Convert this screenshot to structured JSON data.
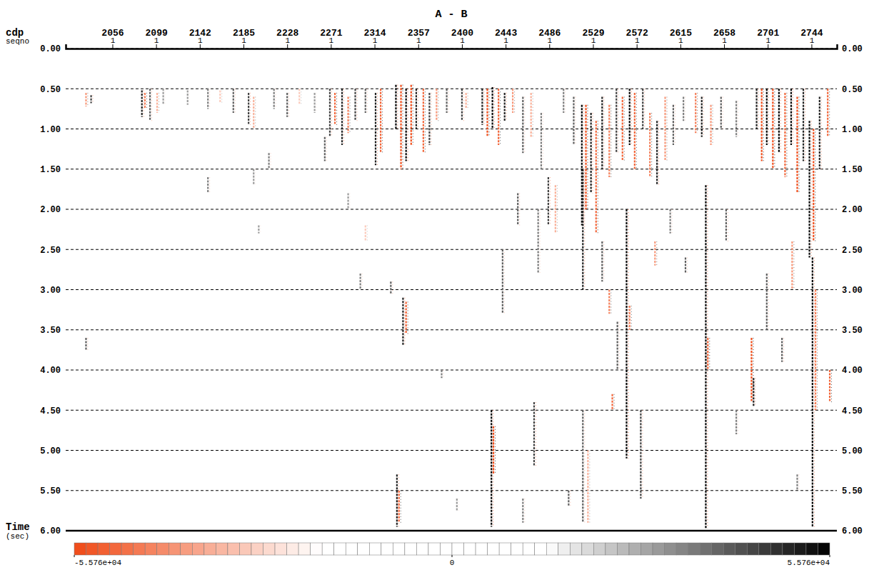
{
  "chart_data": {
    "type": "seismic",
    "title": "A - B",
    "xlabel": "cdp",
    "xlabel_sub": "seqno",
    "ylabel": "Time",
    "ylabel_sub": "(sec)",
    "xlim": [
      2010,
      2769
    ],
    "xticks": [
      2056,
      2099,
      2142,
      2185,
      2228,
      2271,
      2314,
      2357,
      2400,
      2443,
      2486,
      2529,
      2572,
      2615,
      2658,
      2701,
      2744
    ],
    "seqno": [
      1,
      1,
      1,
      1,
      1,
      1,
      1,
      1,
      1,
      1,
      1,
      1,
      1,
      1,
      1,
      1,
      1
    ],
    "ylim": [
      0,
      6
    ],
    "yticks": [
      {
        "value": 0,
        "label": "0.00"
      },
      {
        "value": 0.5,
        "label": "0.50"
      },
      {
        "value": 1,
        "label": "1.00"
      },
      {
        "value": 1.5,
        "label": "1.50"
      },
      {
        "value": 2,
        "label": "2.00"
      },
      {
        "value": 2.5,
        "label": "2.50"
      },
      {
        "value": 3,
        "label": "3.00"
      },
      {
        "value": 3.5,
        "label": "3.50"
      },
      {
        "value": 4,
        "label": "4.00"
      },
      {
        "value": 4.5,
        "label": "4.50"
      },
      {
        "value": 5,
        "label": "5.00"
      },
      {
        "value": 5.5,
        "label": "5.50"
      },
      {
        "value": 6,
        "label": "6.00"
      }
    ],
    "grid": true,
    "colorbar": {
      "range": [
        -55760,
        55760
      ],
      "ticks": [
        {
          "value": -55760,
          "label": "-5.576e+04"
        },
        {
          "value": 0,
          "label": "0"
        },
        {
          "value": 55760,
          "label": "5.576e+04"
        }
      ]
    },
    "events": [
      {
        "cdp": 2030,
        "t0": 0.55,
        "t1": 0.72,
        "amplitude": -40000
      },
      {
        "cdp": 2035,
        "t0": 0.58,
        "t1": 0.68,
        "amplitude": 45000
      },
      {
        "cdp": 2085,
        "t0": 0.52,
        "t1": 0.85,
        "amplitude": 50000
      },
      {
        "cdp": 2088,
        "t0": 0.55,
        "t1": 0.75,
        "amplitude": -45000
      },
      {
        "cdp": 2093,
        "t0": 0.5,
        "t1": 0.9,
        "amplitude": 40000
      },
      {
        "cdp": 2100,
        "t0": 0.55,
        "t1": 0.8,
        "amplitude": -35000
      },
      {
        "cdp": 2106,
        "t0": 0.5,
        "t1": 0.7,
        "amplitude": 30000
      },
      {
        "cdp": 2130,
        "t0": 0.52,
        "t1": 0.7,
        "amplitude": 30000
      },
      {
        "cdp": 2150,
        "t0": 0.5,
        "t1": 0.75,
        "amplitude": 35000
      },
      {
        "cdp": 2162,
        "t0": 0.52,
        "t1": 0.68,
        "amplitude": -30000
      },
      {
        "cdp": 2175,
        "t0": 0.5,
        "t1": 0.8,
        "amplitude": 40000
      },
      {
        "cdp": 2190,
        "t0": 0.55,
        "t1": 0.95,
        "amplitude": 45000
      },
      {
        "cdp": 2195,
        "t0": 0.6,
        "t1": 1.0,
        "amplitude": -35000
      },
      {
        "cdp": 2215,
        "t0": 0.5,
        "t1": 0.75,
        "amplitude": 35000
      },
      {
        "cdp": 2228,
        "t0": 0.55,
        "t1": 0.85,
        "amplitude": 40000
      },
      {
        "cdp": 2240,
        "t0": 0.5,
        "t1": 0.7,
        "amplitude": -30000
      },
      {
        "cdp": 2255,
        "t0": 0.55,
        "t1": 0.8,
        "amplitude": 30000
      },
      {
        "cdp": 2270,
        "t0": 0.5,
        "t1": 1.1,
        "amplitude": 45000
      },
      {
        "cdp": 2275,
        "t0": 0.55,
        "t1": 0.95,
        "amplitude": -50000
      },
      {
        "cdp": 2282,
        "t0": 0.5,
        "t1": 1.2,
        "amplitude": 50000
      },
      {
        "cdp": 2288,
        "t0": 0.6,
        "t1": 1.05,
        "amplitude": -45000
      },
      {
        "cdp": 2295,
        "t0": 0.5,
        "t1": 0.9,
        "amplitude": 45000
      },
      {
        "cdp": 2305,
        "t0": 0.5,
        "t1": 0.8,
        "amplitude": 40000
      },
      {
        "cdp": 2315,
        "t0": 0.55,
        "t1": 1.45,
        "amplitude": 50000
      },
      {
        "cdp": 2320,
        "t0": 0.5,
        "t1": 1.3,
        "amplitude": -50000
      },
      {
        "cdp": 2335,
        "t0": 0.45,
        "t1": 1.0,
        "amplitude": 55000
      },
      {
        "cdp": 2340,
        "t0": 0.45,
        "t1": 1.5,
        "amplitude": -55000
      },
      {
        "cdp": 2345,
        "t0": 0.5,
        "t1": 1.4,
        "amplitude": 55000
      },
      {
        "cdp": 2350,
        "t0": 0.45,
        "t1": 1.2,
        "amplitude": -55000
      },
      {
        "cdp": 2355,
        "t0": 0.5,
        "t1": 1.0,
        "amplitude": 50000
      },
      {
        "cdp": 2362,
        "t0": 0.5,
        "t1": 1.3,
        "amplitude": -50000
      },
      {
        "cdp": 2368,
        "t0": 0.55,
        "t1": 1.2,
        "amplitude": 45000
      },
      {
        "cdp": 2375,
        "t0": 0.5,
        "t1": 0.9,
        "amplitude": -40000
      },
      {
        "cdp": 2385,
        "t0": 0.5,
        "t1": 0.8,
        "amplitude": 40000
      },
      {
        "cdp": 2400,
        "t0": 0.5,
        "t1": 0.9,
        "amplitude": 45000
      },
      {
        "cdp": 2404,
        "t0": 0.55,
        "t1": 0.75,
        "amplitude": -35000
      },
      {
        "cdp": 2420,
        "t0": 0.5,
        "t1": 0.95,
        "amplitude": 50000
      },
      {
        "cdp": 2425,
        "t0": 0.5,
        "t1": 1.1,
        "amplitude": -55000
      },
      {
        "cdp": 2430,
        "t0": 0.48,
        "t1": 1.0,
        "amplitude": 55000
      },
      {
        "cdp": 2436,
        "t0": 0.5,
        "t1": 1.2,
        "amplitude": -50000
      },
      {
        "cdp": 2442,
        "t0": 0.55,
        "t1": 0.9,
        "amplitude": 50000
      },
      {
        "cdp": 2450,
        "t0": 0.5,
        "t1": 0.8,
        "amplitude": -40000
      },
      {
        "cdp": 2460,
        "t0": 0.6,
        "t1": 1.3,
        "amplitude": 40000
      },
      {
        "cdp": 2468,
        "t0": 0.55,
        "t1": 1.1,
        "amplitude": -35000
      },
      {
        "cdp": 2478,
        "t0": 0.8,
        "t1": 1.5,
        "amplitude": 35000
      },
      {
        "cdp": 2485,
        "t0": 1.6,
        "t1": 2.2,
        "amplitude": 45000
      },
      {
        "cdp": 2492,
        "t0": 1.7,
        "t1": 2.3,
        "amplitude": -35000
      },
      {
        "cdp": 2500,
        "t0": 0.5,
        "t1": 0.8,
        "amplitude": 35000
      },
      {
        "cdp": 2510,
        "t0": 0.6,
        "t1": 1.2,
        "amplitude": 40000
      },
      {
        "cdp": 2518,
        "t0": 0.7,
        "t1": 2.2,
        "amplitude": 55000
      },
      {
        "cdp": 2522,
        "t0": 0.7,
        "t1": 2.0,
        "amplitude": -55000
      },
      {
        "cdp": 2527,
        "t0": 0.8,
        "t1": 1.8,
        "amplitude": 50000
      },
      {
        "cdp": 2532,
        "t0": 0.9,
        "t1": 2.3,
        "amplitude": -50000
      },
      {
        "cdp": 2538,
        "t0": 0.6,
        "t1": 1.5,
        "amplitude": 50000
      },
      {
        "cdp": 2545,
        "t0": 0.7,
        "t1": 1.6,
        "amplitude": -45000
      },
      {
        "cdp": 2552,
        "t0": 0.5,
        "t1": 1.3,
        "amplitude": 45000
      },
      {
        "cdp": 2558,
        "t0": 0.6,
        "t1": 1.4,
        "amplitude": -50000
      },
      {
        "cdp": 2565,
        "t0": 0.5,
        "t1": 1.2,
        "amplitude": 55000
      },
      {
        "cdp": 2570,
        "t0": 0.55,
        "t1": 1.5,
        "amplitude": -50000
      },
      {
        "cdp": 2578,
        "t0": 0.5,
        "t1": 1.0,
        "amplitude": 45000
      },
      {
        "cdp": 2585,
        "t0": 0.8,
        "t1": 1.6,
        "amplitude": -45000
      },
      {
        "cdp": 2592,
        "t0": 0.9,
        "t1": 1.7,
        "amplitude": 50000
      },
      {
        "cdp": 2600,
        "t0": 0.6,
        "t1": 1.4,
        "amplitude": -40000
      },
      {
        "cdp": 2608,
        "t0": 0.7,
        "t1": 1.2,
        "amplitude": 40000
      },
      {
        "cdp": 2618,
        "t0": 0.6,
        "t1": 0.9,
        "amplitude": 35000
      },
      {
        "cdp": 2630,
        "t0": 0.55,
        "t1": 1.05,
        "amplitude": -45000
      },
      {
        "cdp": 2636,
        "t0": 0.6,
        "t1": 1.1,
        "amplitude": 50000
      },
      {
        "cdp": 2645,
        "t0": 0.7,
        "t1": 1.2,
        "amplitude": -40000
      },
      {
        "cdp": 2655,
        "t0": 0.6,
        "t1": 1.0,
        "amplitude": 40000
      },
      {
        "cdp": 2670,
        "t0": 0.65,
        "t1": 1.1,
        "amplitude": 35000
      },
      {
        "cdp": 2690,
        "t0": 0.5,
        "t1": 1.0,
        "amplitude": 50000
      },
      {
        "cdp": 2695,
        "t0": 0.5,
        "t1": 1.4,
        "amplitude": -55000
      },
      {
        "cdp": 2700,
        "t0": 0.5,
        "t1": 1.2,
        "amplitude": 55000
      },
      {
        "cdp": 2706,
        "t0": 0.5,
        "t1": 1.5,
        "amplitude": -55000
      },
      {
        "cdp": 2712,
        "t0": 0.5,
        "t1": 1.3,
        "amplitude": 55000
      },
      {
        "cdp": 2718,
        "t0": 0.55,
        "t1": 1.6,
        "amplitude": -50000
      },
      {
        "cdp": 2724,
        "t0": 0.5,
        "t1": 1.2,
        "amplitude": 55000
      },
      {
        "cdp": 2730,
        "t0": 0.6,
        "t1": 1.8,
        "amplitude": -55000
      },
      {
        "cdp": 2736,
        "t0": 0.5,
        "t1": 1.4,
        "amplitude": 50000
      },
      {
        "cdp": 2742,
        "t0": 0.9,
        "t1": 2.6,
        "amplitude": 55000
      },
      {
        "cdp": 2746,
        "t0": 1.0,
        "t1": 2.4,
        "amplitude": -55000
      },
      {
        "cdp": 2752,
        "t0": 0.6,
        "t1": 1.5,
        "amplitude": 50000
      },
      {
        "cdp": 2760,
        "t0": 0.5,
        "t1": 1.1,
        "amplitude": -50000
      },
      {
        "cdp": 2195,
        "t0": 1.5,
        "t1": 1.7,
        "amplitude": 30000
      },
      {
        "cdp": 2210,
        "t0": 1.3,
        "t1": 1.5,
        "amplitude": 35000
      },
      {
        "cdp": 2265,
        "t0": 1.1,
        "t1": 1.4,
        "amplitude": 40000
      },
      {
        "cdp": 2288,
        "t0": 1.8,
        "t1": 2.0,
        "amplitude": 30000
      },
      {
        "cdp": 2300,
        "t0": 2.8,
        "t1": 3.0,
        "amplitude": 35000
      },
      {
        "cdp": 2305,
        "t0": 2.2,
        "t1": 2.4,
        "amplitude": -30000
      },
      {
        "cdp": 2330,
        "t0": 2.9,
        "t1": 3.05,
        "amplitude": 40000
      },
      {
        "cdp": 2342,
        "t0": 3.1,
        "t1": 3.7,
        "amplitude": 50000
      },
      {
        "cdp": 2345,
        "t0": 3.15,
        "t1": 3.55,
        "amplitude": -50000
      },
      {
        "cdp": 2380,
        "t0": 4.0,
        "t1": 4.1,
        "amplitude": 35000
      },
      {
        "cdp": 2030,
        "t0": 3.6,
        "t1": 3.75,
        "amplitude": 40000
      },
      {
        "cdp": 2336,
        "t0": 5.3,
        "t1": 5.95,
        "amplitude": 50000
      },
      {
        "cdp": 2338,
        "t0": 5.5,
        "t1": 5.9,
        "amplitude": -50000
      },
      {
        "cdp": 2429,
        "t0": 4.5,
        "t1": 5.95,
        "amplitude": 55000
      },
      {
        "cdp": 2431,
        "t0": 4.7,
        "t1": 5.3,
        "amplitude": -55000
      },
      {
        "cdp": 2440,
        "t0": 2.5,
        "t1": 3.3,
        "amplitude": 40000
      },
      {
        "cdp": 2455,
        "t0": 1.8,
        "t1": 2.2,
        "amplitude": 40000
      },
      {
        "cdp": 2471,
        "t0": 4.4,
        "t1": 5.2,
        "amplitude": 45000
      },
      {
        "cdp": 2475,
        "t0": 2.0,
        "t1": 2.8,
        "amplitude": 35000
      },
      {
        "cdp": 2519,
        "t0": 1.5,
        "t1": 3.0,
        "amplitude": 50000
      },
      {
        "cdp": 2519,
        "t0": 4.5,
        "t1": 5.9,
        "amplitude": 40000
      },
      {
        "cdp": 2524,
        "t0": 5.0,
        "t1": 5.9,
        "amplitude": -35000
      },
      {
        "cdp": 2538,
        "t0": 2.4,
        "t1": 2.9,
        "amplitude": 40000
      },
      {
        "cdp": 2545,
        "t0": 3.0,
        "t1": 3.3,
        "amplitude": -45000
      },
      {
        "cdp": 2548,
        "t0": 4.3,
        "t1": 4.5,
        "amplitude": -50000
      },
      {
        "cdp": 2553,
        "t0": 3.4,
        "t1": 4.0,
        "amplitude": 40000
      },
      {
        "cdp": 2562,
        "t0": 2.0,
        "t1": 5.1,
        "amplitude": 55000
      },
      {
        "cdp": 2565,
        "t0": 3.2,
        "t1": 3.5,
        "amplitude": -45000
      },
      {
        "cdp": 2576,
        "t0": 4.5,
        "t1": 5.6,
        "amplitude": 45000
      },
      {
        "cdp": 2590,
        "t0": 2.4,
        "t1": 2.7,
        "amplitude": -40000
      },
      {
        "cdp": 2605,
        "t0": 2.0,
        "t1": 2.3,
        "amplitude": 35000
      },
      {
        "cdp": 2620,
        "t0": 2.6,
        "t1": 2.8,
        "amplitude": 40000
      },
      {
        "cdp": 2640,
        "t0": 1.7,
        "t1": 5.97,
        "amplitude": 55000
      },
      {
        "cdp": 2642,
        "t0": 3.6,
        "t1": 4.0,
        "amplitude": -50000
      },
      {
        "cdp": 2660,
        "t0": 2.0,
        "t1": 2.4,
        "amplitude": 40000
      },
      {
        "cdp": 2670,
        "t0": 4.5,
        "t1": 4.8,
        "amplitude": 35000
      },
      {
        "cdp": 2685,
        "t0": 3.6,
        "t1": 4.4,
        "amplitude": -55000
      },
      {
        "cdp": 2687,
        "t0": 4.1,
        "t1": 4.45,
        "amplitude": 50000
      },
      {
        "cdp": 2700,
        "t0": 2.8,
        "t1": 3.5,
        "amplitude": 40000
      },
      {
        "cdp": 2715,
        "t0": 3.6,
        "t1": 3.9,
        "amplitude": 40000
      },
      {
        "cdp": 2725,
        "t0": 2.4,
        "t1": 3.0,
        "amplitude": -40000
      },
      {
        "cdp": 2745,
        "t0": 2.6,
        "t1": 5.95,
        "amplitude": 55000
      },
      {
        "cdp": 2748,
        "t0": 3.0,
        "t1": 4.5,
        "amplitude": -45000
      },
      {
        "cdp": 2762,
        "t0": 4.0,
        "t1": 4.4,
        "amplitude": -50000
      },
      {
        "cdp": 2730,
        "t0": 5.3,
        "t1": 5.5,
        "amplitude": 35000
      },
      {
        "cdp": 2505,
        "t0": 5.5,
        "t1": 5.7,
        "amplitude": 40000
      },
      {
        "cdp": 2460,
        "t0": 5.6,
        "t1": 5.9,
        "amplitude": 35000
      },
      {
        "cdp": 2395,
        "t0": 5.6,
        "t1": 5.75,
        "amplitude": 30000
      },
      {
        "cdp": 2200,
        "t0": 2.2,
        "t1": 2.3,
        "amplitude": 30000
      },
      {
        "cdp": 2150,
        "t0": 1.6,
        "t1": 1.8,
        "amplitude": 35000
      }
    ]
  }
}
